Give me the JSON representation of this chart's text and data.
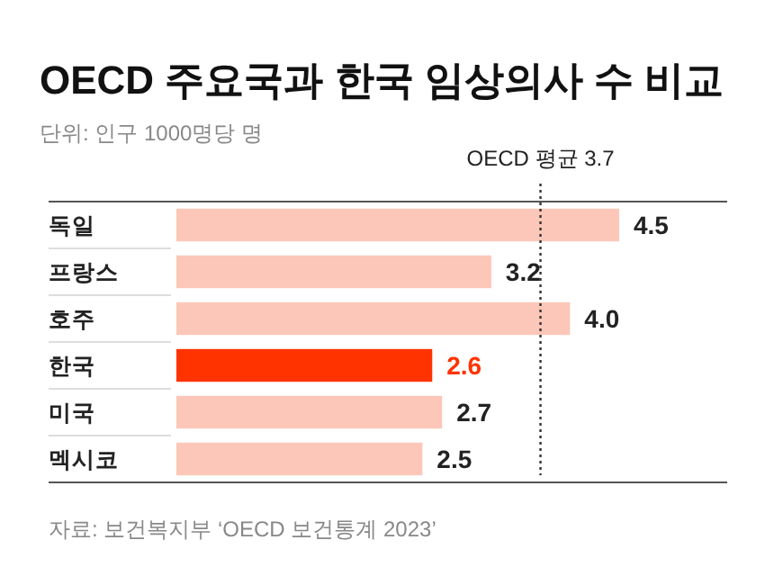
{
  "chart_data": {
    "type": "bar",
    "orientation": "horizontal",
    "title": "OECD 주요국과 한국 임상의사 수 비교",
    "subtitle": "단위: 인구 1000명당 명",
    "categories": [
      "독일",
      "프랑스",
      "호주",
      "한국",
      "미국",
      "멕시코"
    ],
    "values": [
      4.5,
      3.2,
      4.0,
      2.6,
      2.7,
      2.5
    ],
    "colors": [
      "#fcc7b8",
      "#fcc7b8",
      "#fcc7b8",
      "#ff3300",
      "#fcc7b8",
      "#fcc7b8"
    ],
    "value_labels": [
      "4.5",
      "3.2",
      "4.0",
      "2.6",
      "2.7",
      "2.5"
    ],
    "ref_lines": [
      {
        "axis": "x",
        "value": 3.7,
        "label": "OECD 평균 3.7",
        "line_style": "dotted",
        "color": "#333333"
      }
    ],
    "annotations": [
      "자료: 보건복지부 ‘OECD 보건통계 2023’"
    ]
  }
}
